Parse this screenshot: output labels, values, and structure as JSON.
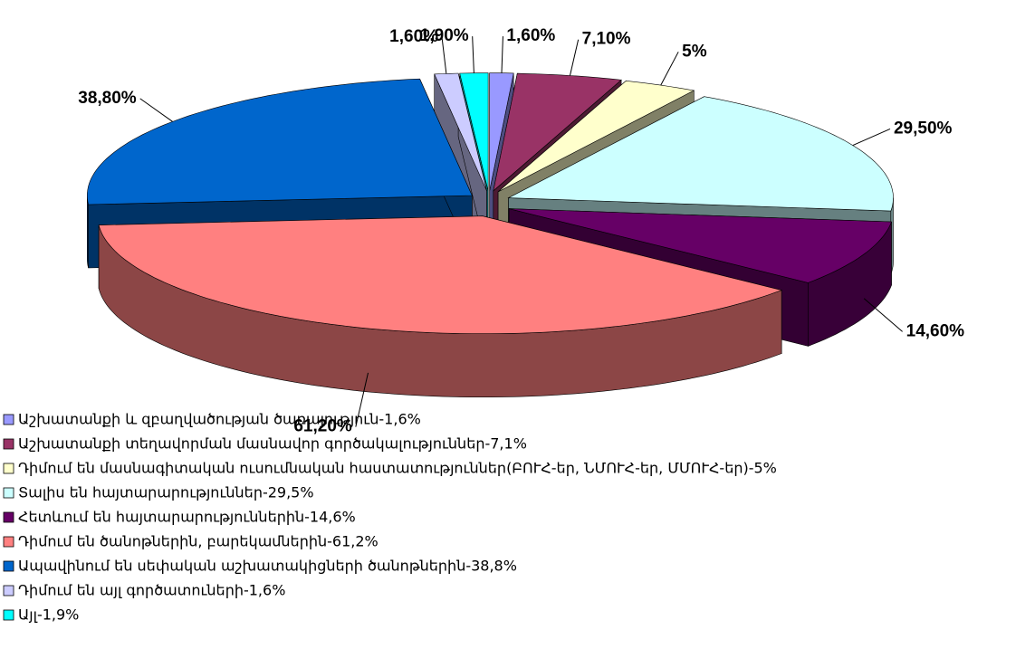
{
  "chart_data": {
    "type": "pie",
    "categories": [
      "Աշխատանքի և զբաղվածության ծառայություն-1,6%",
      "Աշխատանքի տեղավորման մասնավոր գործակալություններ-7,1%",
      "Դիմում են մասնագիտական ուսումնական հաստատություններ(ԲՈՒՀ-եր, ՆՄՈՒՀ-եր, ՄՄՈՒՀ-եր)-5%",
      "Տալիս են հայտարարություններ-29,5%",
      "Հետևում են հայտարարություններին-14,6%",
      "Դիմում են ծանոթներին, բարեկամներին-61,2%",
      "Ապավինում են սեփական աշխատակիցների ծանոթներին-38,8%",
      "Դիմում են այլ գործատուների-1,6%",
      "Այլ-1,9%"
    ],
    "values": [
      1.6,
      7.1,
      5,
      29.5,
      14.6,
      61.2,
      38.8,
      1.6,
      1.9
    ],
    "value_labels": [
      "1,60%",
      "7,10%",
      "5%",
      "29,50%",
      "14,60%",
      "61,20%",
      "38,80%",
      "1,60%",
      "1,90%"
    ],
    "colors": [
      "#9999ff",
      "#993366",
      "#ffffcc",
      "#ccffff",
      "#660066",
      "#ff8080",
      "#0066cc",
      "#ccccff",
      "#00ffff"
    ],
    "legend": "bottom-left"
  }
}
